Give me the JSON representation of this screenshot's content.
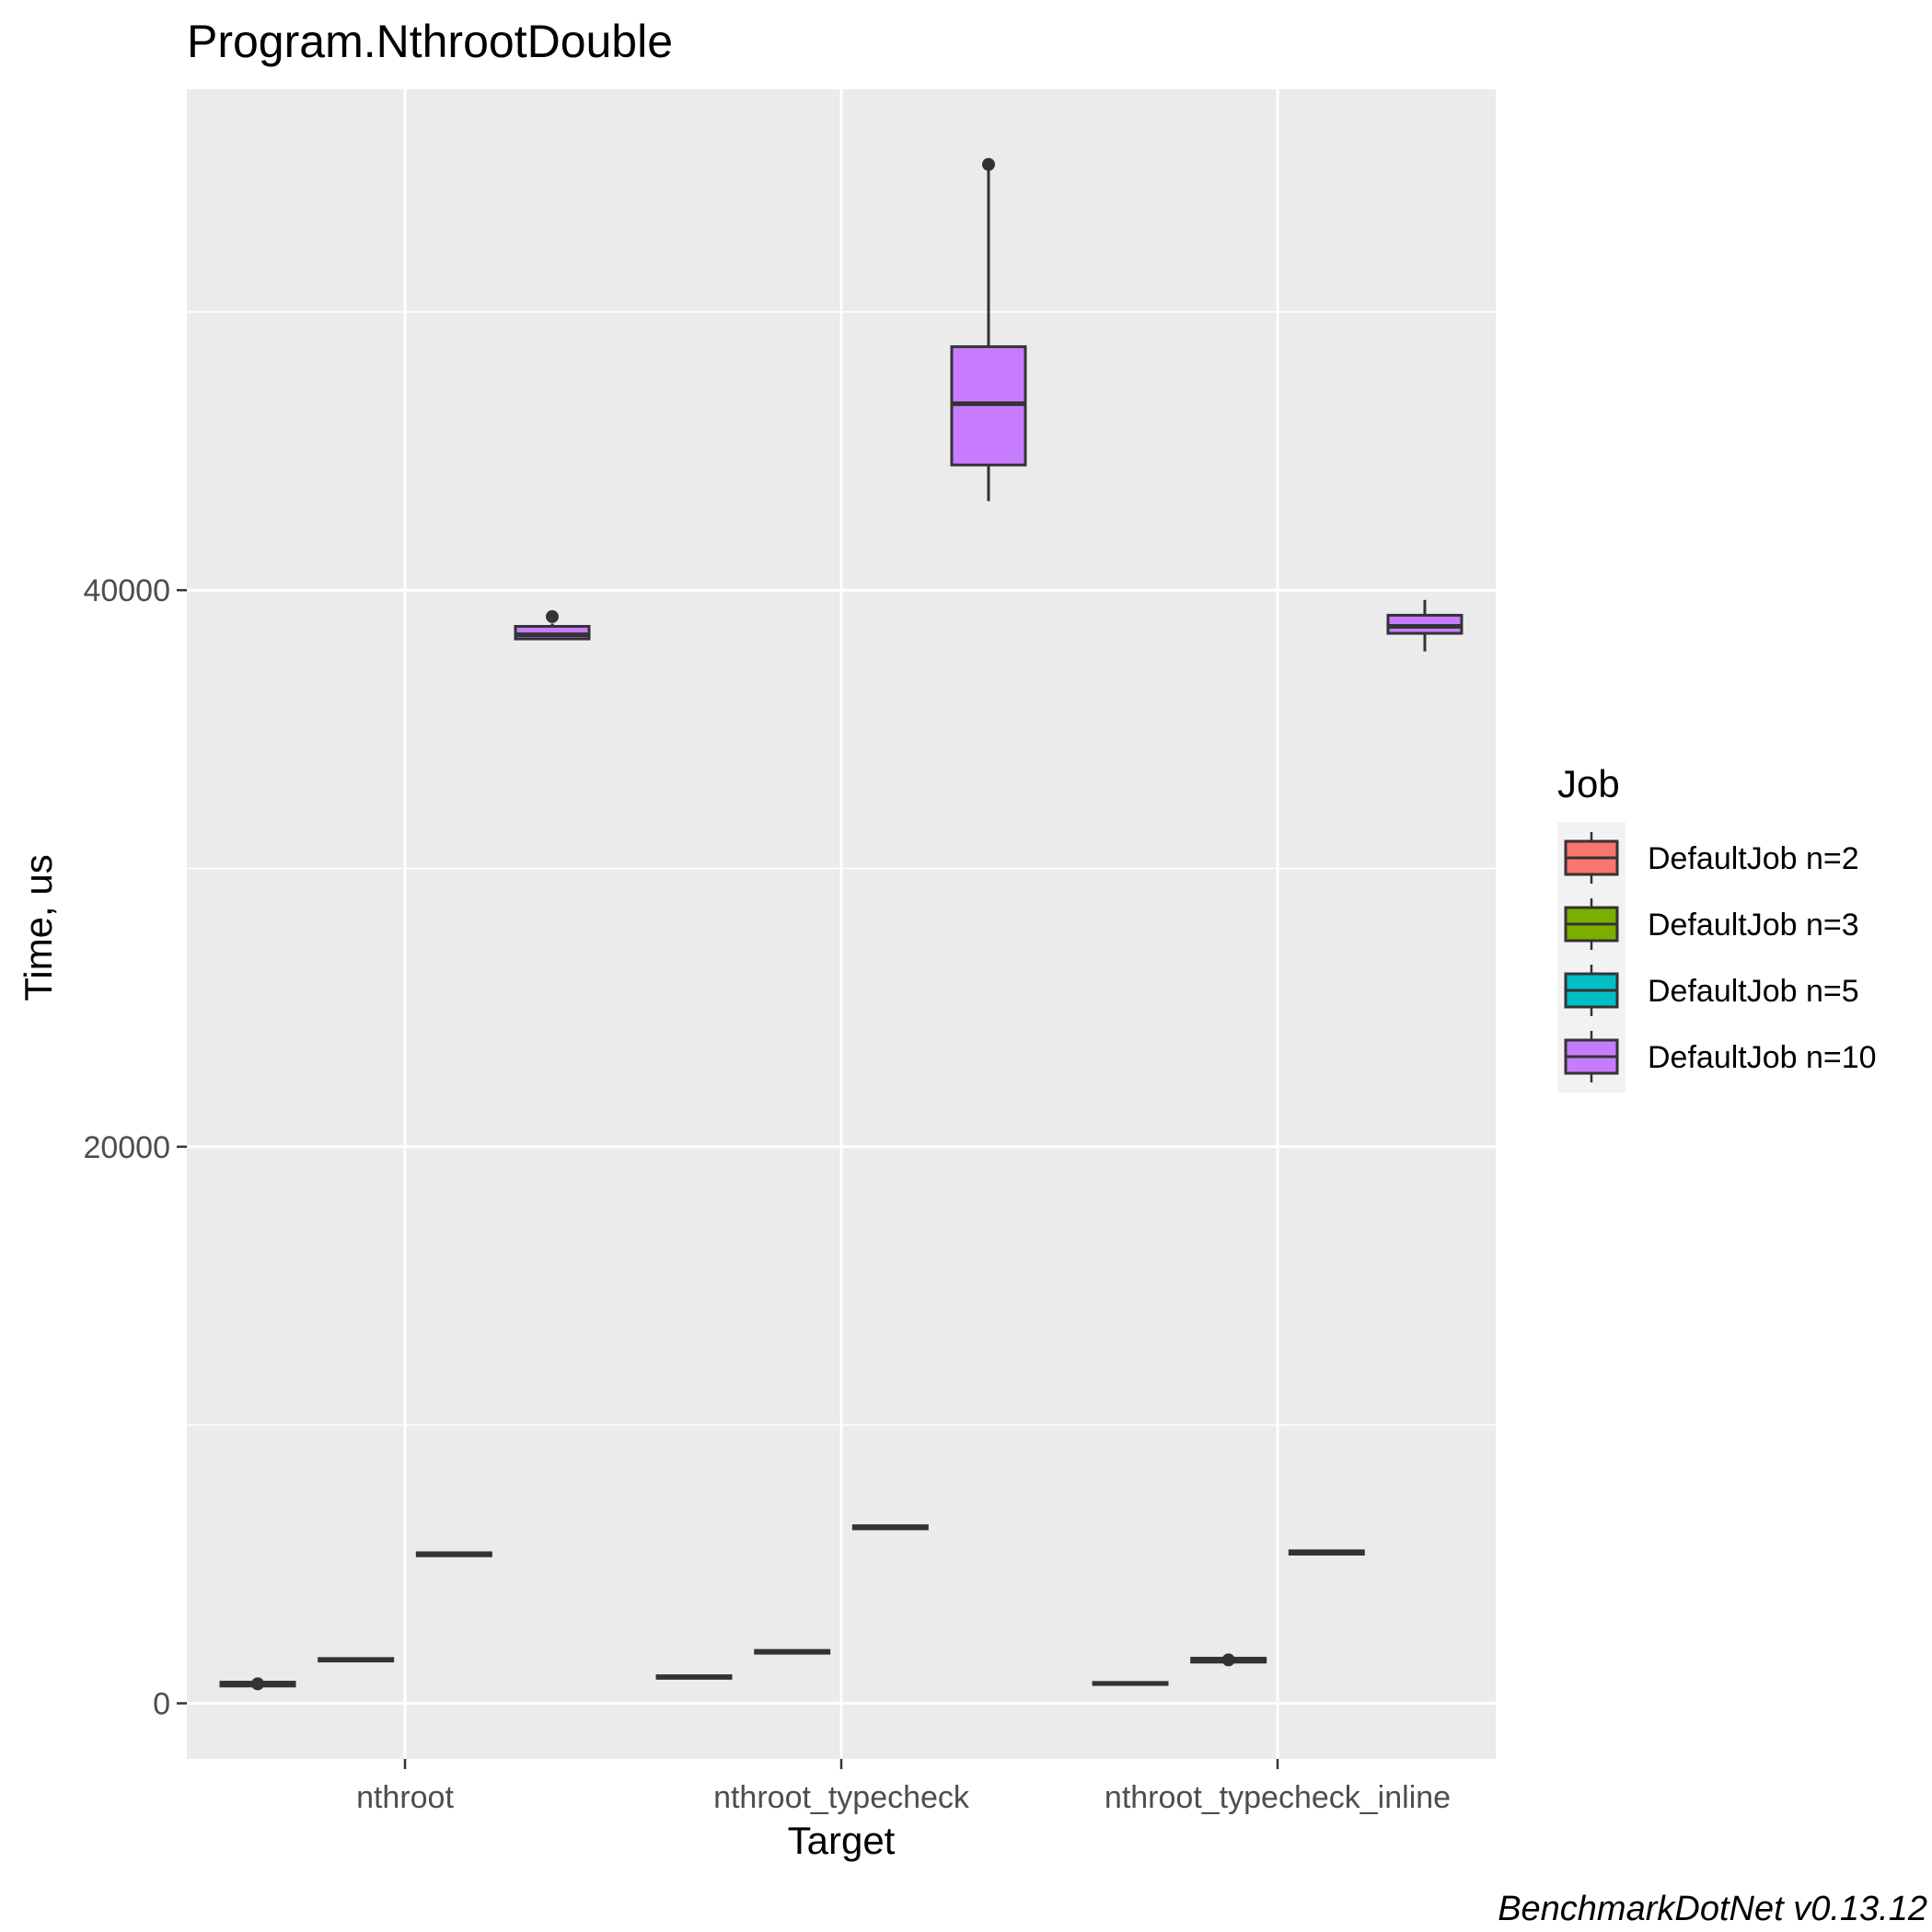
{
  "chart_data": {
    "type": "boxplot",
    "title": "Program.NthrootDouble",
    "xlabel": "Target",
    "ylabel": "Time, us",
    "caption": "BenchmarkDotNet v0.13.12",
    "categories": [
      "nthroot",
      "nthroot_typecheck",
      "nthroot_typecheck_inline"
    ],
    "ylim": [
      -2000,
      58000
    ],
    "yticks": [
      0,
      20000,
      40000
    ],
    "yminor": [
      10000,
      30000,
      50000
    ],
    "grid": true,
    "panel_color": "#ebebeb",
    "legend": {
      "title": "Job",
      "position": "right",
      "entries": [
        "DefaultJob n=2",
        "DefaultJob n=3",
        "DefaultJob n=5",
        "DefaultJob n=10"
      ]
    },
    "series": [
      {
        "name": "DefaultJob n=2",
        "color": "#f8766d",
        "boxes": [
          {
            "q1": 620,
            "median": 680,
            "q3": 760,
            "whisker_low": 600,
            "whisker_high": 800,
            "outliers": [
              700
            ]
          },
          {
            "q1": 900,
            "median": 940,
            "q3": 990,
            "whisker_low": 880,
            "whisker_high": 1010,
            "outliers": []
          },
          {
            "q1": 680,
            "median": 710,
            "q3": 750,
            "whisker_low": 660,
            "whisker_high": 770,
            "outliers": []
          }
        ]
      },
      {
        "name": "DefaultJob n=3",
        "color": "#7cae00",
        "boxes": [
          {
            "q1": 1520,
            "median": 1560,
            "q3": 1610,
            "whisker_low": 1500,
            "whisker_high": 1630,
            "outliers": []
          },
          {
            "q1": 1800,
            "median": 1840,
            "q3": 1900,
            "whisker_low": 1780,
            "whisker_high": 1920,
            "outliers": []
          },
          {
            "q1": 1480,
            "median": 1540,
            "q3": 1620,
            "whisker_low": 1460,
            "whisker_high": 1650,
            "outliers": [
              1560
            ]
          }
        ]
      },
      {
        "name": "DefaultJob n=5",
        "color": "#00bfc4",
        "boxes": [
          {
            "q1": 5300,
            "median": 5350,
            "q3": 5410,
            "whisker_low": 5280,
            "whisker_high": 5430,
            "outliers": []
          },
          {
            "q1": 6270,
            "median": 6320,
            "q3": 6380,
            "whisker_low": 6250,
            "whisker_high": 6400,
            "outliers": []
          },
          {
            "q1": 5360,
            "median": 5420,
            "q3": 5480,
            "whisker_low": 5340,
            "whisker_high": 5500,
            "outliers": []
          }
        ]
      },
      {
        "name": "DefaultJob n=10",
        "color": "#c77cff",
        "boxes": [
          {
            "q1": 38250,
            "median": 38400,
            "q3": 38700,
            "whisker_low": 38200,
            "whisker_high": 38800,
            "outliers": [
              39050
            ]
          },
          {
            "q1": 44500,
            "median": 46700,
            "q3": 48750,
            "whisker_low": 43200,
            "whisker_high": 55300,
            "outliers": [
              55300
            ]
          },
          {
            "q1": 38450,
            "median": 38700,
            "q3": 39100,
            "whisker_low": 37800,
            "whisker_high": 39650,
            "outliers": []
          }
        ]
      }
    ]
  }
}
